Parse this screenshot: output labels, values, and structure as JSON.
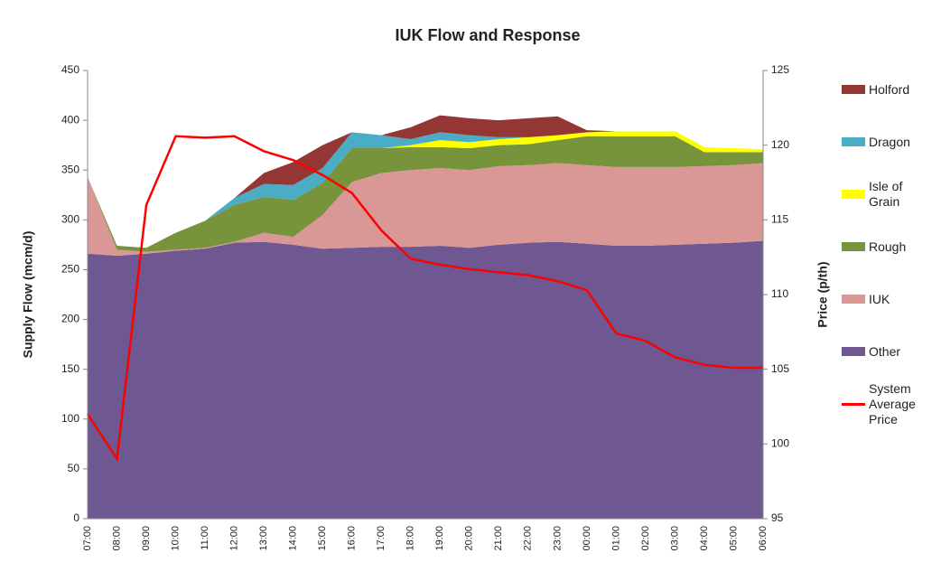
{
  "chart_data": {
    "type": "stacked-area",
    "title": "IUK Flow and Response",
    "y_label": "Supply Flow (mcm/d)",
    "y2_label": "Price (p/th)",
    "categories": [
      "07:00",
      "08:00",
      "09:00",
      "10:00",
      "11:00",
      "12:00",
      "13:00",
      "14:00",
      "15:00",
      "16:00",
      "17:00",
      "18:00",
      "19:00",
      "20:00",
      "21:00",
      "22:00",
      "23:00",
      "00:00",
      "01:00",
      "02:00",
      "03:00",
      "04:00",
      "05:00",
      "06:00"
    ],
    "series": [
      {
        "name": "Other",
        "color": "#6f5892",
        "values": [
          266,
          264,
          266,
          269,
          271,
          277,
          278,
          275,
          271,
          272,
          273,
          273,
          274,
          272,
          275,
          277,
          278,
          276,
          274,
          274,
          275,
          276,
          277,
          279
        ]
      },
      {
        "name": "IUK",
        "color": "#d99795",
        "values": [
          77,
          6,
          2,
          1,
          1,
          1,
          9,
          8,
          34,
          66,
          74,
          77,
          78,
          78,
          79,
          78,
          79,
          79,
          79,
          79,
          78,
          78,
          78,
          78
        ]
      },
      {
        "name": "Rough",
        "color": "#77933c",
        "values": [
          0,
          4,
          4,
          17,
          27,
          37,
          36,
          37,
          32,
          34,
          25,
          23,
          21,
          22,
          21,
          21,
          23,
          29,
          31,
          31,
          31,
          14,
          13,
          11
        ]
      },
      {
        "name": "Isle of Grain",
        "color": "#ffff00",
        "values": [
          0,
          0,
          0,
          0,
          0,
          0,
          0,
          0,
          0,
          0,
          0,
          2,
          7,
          6,
          6,
          7,
          5,
          4,
          5,
          5,
          5,
          5,
          4,
          3
        ]
      },
      {
        "name": "Dragon",
        "color": "#4bacc6",
        "values": [
          0,
          0,
          0,
          0,
          0,
          7,
          13,
          15,
          15,
          16,
          13,
          6,
          8,
          7,
          2,
          0,
          0,
          0,
          0,
          0,
          0,
          0,
          0,
          0
        ]
      },
      {
        "name": "Holford",
        "color": "#943634",
        "values": [
          0,
          0,
          0,
          0,
          0,
          0,
          11,
          23,
          23,
          0,
          0,
          12,
          17,
          17,
          17,
          19,
          19,
          2,
          0,
          0,
          0,
          0,
          0,
          0
        ]
      },
      {
        "name": "System Average Price",
        "type": "line",
        "axis": "y2",
        "color": "#ff0000",
        "values": [
          102,
          99,
          116,
          120.6,
          120.5,
          120.6,
          119.6,
          119,
          118,
          116.8,
          114.3,
          112.4,
          112,
          111.7,
          111.5,
          111.3,
          110.9,
          110.3,
          107.4,
          106.9,
          105.8,
          105.3,
          105.1,
          105.1
        ]
      }
    ],
    "ylim": [
      0,
      450
    ],
    "yticks": [
      0,
      50,
      100,
      150,
      200,
      250,
      300,
      350,
      400,
      450
    ],
    "y2lim": [
      95,
      125
    ],
    "y2ticks": [
      95,
      100,
      105,
      110,
      115,
      120,
      125
    ]
  }
}
